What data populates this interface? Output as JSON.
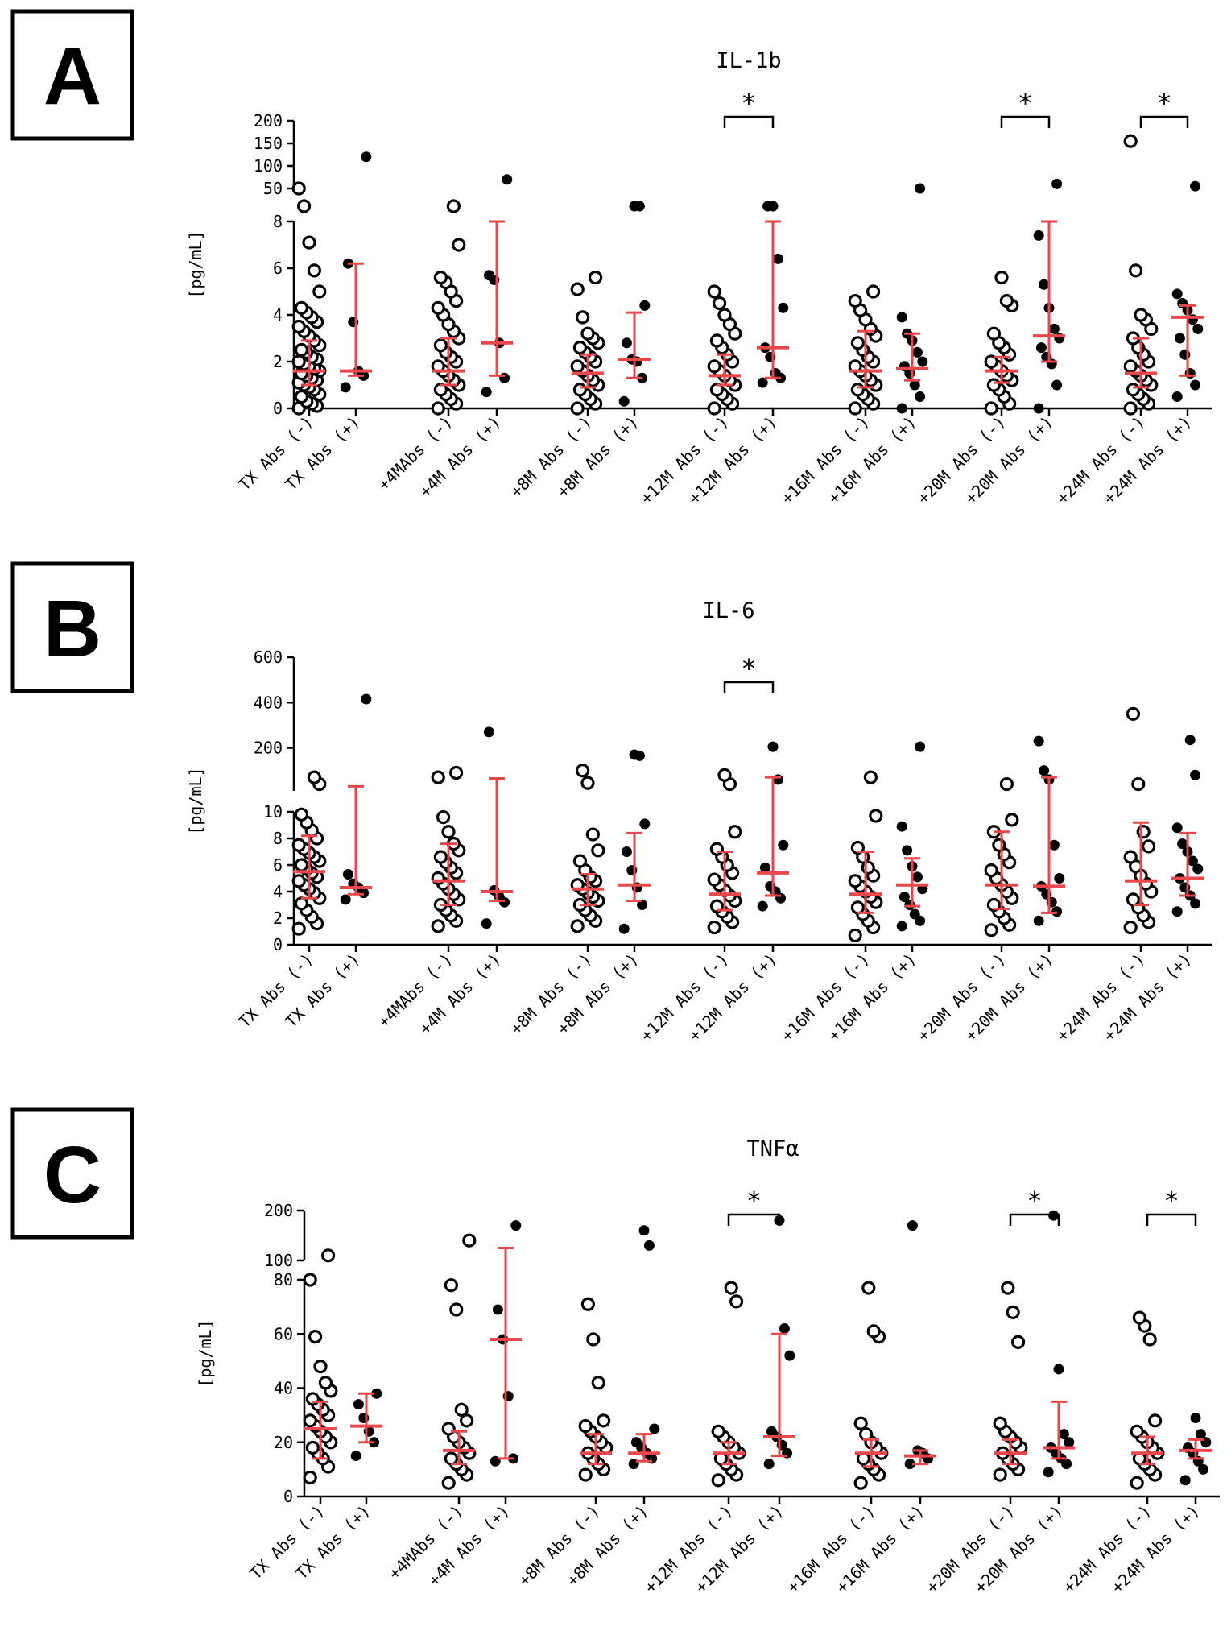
{
  "chart_data": [
    {
      "panel": "A",
      "type": "scatter",
      "title": "IL-1b",
      "ylabel": "[pg/mL]",
      "categories": [
        "TX Abs (-)",
        "TX Abs (+)",
        "+4MAbs (-)",
        "+4M Abs (+)",
        "+8M Abs (-)",
        "+8M Abs (+)",
        "+12M Abs (-)",
        "+12M Abs (+)",
        "+16M Abs (-)",
        "+16M Abs (+)",
        "+20M Abs (-)",
        "+20M Abs (+)",
        "+24M Abs (-)",
        "+24M Abs (+)"
      ],
      "y_segments": [
        {
          "range": [
            0,
            8
          ],
          "ticks": [
            "0",
            "2",
            "4",
            "6",
            "8"
          ]
        },
        {
          "range": [
            50,
            200
          ],
          "ticks": [
            "50",
            "100",
            "150",
            "200"
          ]
        }
      ],
      "series": [
        {
          "name": "Abs (-)",
          "marker": "open circle",
          "groups": [
            0,
            2,
            4,
            6,
            8,
            10,
            12
          ]
        },
        {
          "name": "Abs (+)",
          "marker": "filled circle",
          "groups": [
            1,
            3,
            5,
            7,
            9,
            11,
            13
          ]
        }
      ],
      "points": [
        [
          0.0,
          0.1,
          0.2,
          0.3,
          0.5,
          0.6,
          0.8,
          0.9,
          1.0,
          1.1,
          1.2,
          1.3,
          1.4,
          1.5,
          1.6,
          1.7,
          1.8,
          1.9,
          2.0,
          2.1,
          2.2,
          2.4,
          2.5,
          2.7,
          2.9,
          3.1,
          3.3,
          3.5,
          3.7,
          3.9,
          4.1,
          4.3,
          5.0,
          5.9,
          7.1,
          30,
          50
        ],
        [
          0.9,
          1.4,
          1.6,
          3.7,
          6.2,
          120
        ],
        [
          0.0,
          0.2,
          0.4,
          0.6,
          0.8,
          1.0,
          1.2,
          1.4,
          1.6,
          1.8,
          2.0,
          2.2,
          2.4,
          2.7,
          3.0,
          3.3,
          3.6,
          4.0,
          4.3,
          4.6,
          5.0,
          5.4,
          5.6,
          7.0,
          30
        ],
        [
          0.7,
          1.3,
          2.8,
          5.5,
          5.7,
          70
        ],
        [
          0.0,
          0.2,
          0.4,
          0.6,
          0.8,
          1.0,
          1.2,
          1.4,
          1.6,
          1.8,
          2.0,
          2.2,
          2.4,
          2.6,
          2.8,
          3.0,
          3.2,
          3.9,
          5.1,
          5.6
        ],
        [
          0.3,
          1.3,
          2.0,
          2.1,
          2.8,
          4.4,
          40,
          45
        ],
        [
          0.0,
          0.2,
          0.4,
          0.6,
          0.8,
          1.0,
          1.2,
          1.4,
          1.6,
          1.8,
          2.0,
          2.3,
          2.6,
          2.9,
          3.2,
          3.6,
          4.0,
          4.5,
          5.0
        ],
        [
          1.1,
          1.3,
          1.5,
          2.2,
          2.6,
          4.3,
          6.4,
          40,
          48
        ],
        [
          0.0,
          0.2,
          0.4,
          0.6,
          0.8,
          1.0,
          1.2,
          1.4,
          1.6,
          1.8,
          2.0,
          2.2,
          2.5,
          2.8,
          3.1,
          3.4,
          3.8,
          4.2,
          4.6,
          5.0
        ],
        [
          0.0,
          0.5,
          1.0,
          1.5,
          1.8,
          2.0,
          2.4,
          2.9,
          3.2,
          3.9,
          50
        ],
        [
          0.0,
          0.2,
          0.5,
          0.8,
          1.0,
          1.2,
          1.4,
          1.6,
          1.8,
          2.0,
          2.3,
          2.6,
          2.8,
          3.2,
          4.4,
          4.6,
          5.6
        ],
        [
          0.0,
          1.0,
          1.9,
          2.2,
          2.6,
          3.0,
          3.4,
          4.3,
          5.3,
          7.4,
          60
        ],
        [
          0.0,
          0.2,
          0.4,
          0.6,
          0.8,
          1.0,
          1.2,
          1.4,
          1.6,
          1.8,
          2.0,
          2.3,
          2.6,
          3.0,
          3.4,
          3.8,
          4.0,
          5.9,
          155
        ],
        [
          0.5,
          1.0,
          1.5,
          2.3,
          3.0,
          3.4,
          3.8,
          4.2,
          4.5,
          4.9,
          55
        ]
      ],
      "median": [
        1.6,
        1.6,
        1.6,
        2.8,
        1.5,
        2.1,
        1.4,
        2.6,
        1.6,
        1.7,
        1.6,
        3.1,
        1.5,
        3.9
      ],
      "iqr": [
        [
          1.0,
          2.9
        ],
        [
          1.4,
          6.2
        ],
        [
          1.0,
          3.0
        ],
        [
          1.4,
          8.0
        ],
        [
          0.9,
          2.3
        ],
        [
          1.3,
          4.1
        ],
        [
          1.0,
          2.3
        ],
        [
          1.3,
          8.0
        ],
        [
          0.9,
          3.3
        ],
        [
          1.2,
          3.2
        ],
        [
          1.1,
          2.2
        ],
        [
          2.0,
          8.0
        ],
        [
          0.9,
          3.0
        ],
        [
          1.4,
          4.4
        ]
      ],
      "significance": [
        {
          "between": [
            6,
            7
          ],
          "label": "*"
        },
        {
          "between": [
            10,
            11
          ],
          "label": "*"
        },
        {
          "between": [
            12,
            13
          ],
          "label": "*"
        }
      ]
    },
    {
      "panel": "B",
      "type": "scatter",
      "title": "IL-6",
      "ylabel": "[pg/mL]",
      "categories": [
        "TX Abs (-)",
        "TX Abs (+)",
        "+4MAbs (-)",
        "+4M Abs (+)",
        "+8M Abs (-)",
        "+8M Abs (+)",
        "+12M Abs (-)",
        "+12M Abs (+)",
        "+16M Abs (-)",
        "+16M Abs (+)",
        "+20M Abs (-)",
        "+20M Abs (+)",
        "+24M Abs (-)",
        "+24M Abs (+)"
      ],
      "y_segments": [
        {
          "range": [
            0,
            10
          ],
          "ticks": [
            "0",
            "2",
            "4",
            "6",
            "8",
            "10"
          ]
        },
        {
          "range": [
            10,
            600
          ],
          "ticks": [
            "200",
            "400",
            "600"
          ]
        }
      ],
      "series": [
        {
          "name": "Abs (-)",
          "marker": "open circle",
          "groups": [
            0,
            2,
            4,
            6,
            8,
            10,
            12
          ]
        },
        {
          "name": "Abs (+)",
          "marker": "filled circle",
          "groups": [
            1,
            3,
            5,
            7,
            9,
            11,
            13
          ]
        }
      ],
      "points": [
        [
          1.2,
          1.6,
          2.1,
          2.6,
          3.1,
          3.5,
          3.9,
          4.2,
          4.5,
          4.8,
          5.1,
          5.4,
          5.7,
          6.0,
          6.3,
          6.6,
          6.9,
          7.2,
          7.5,
          8.0,
          8.6,
          9.2,
          9.8,
          40,
          70
        ],
        [
          3.4,
          3.9,
          4.3,
          4.6,
          5.3,
          415
        ],
        [
          1.4,
          1.8,
          2.2,
          2.6,
          3.0,
          3.4,
          3.8,
          4.2,
          4.6,
          5.0,
          5.4,
          5.8,
          6.2,
          6.6,
          7.1,
          7.6,
          8.5,
          9.6,
          70,
          90
        ],
        [
          1.6,
          3.2,
          3.6,
          4.1,
          270
        ],
        [
          1.4,
          1.8,
          2.2,
          2.6,
          3.0,
          3.3,
          3.6,
          3.9,
          4.2,
          4.5,
          4.8,
          5.1,
          5.6,
          6.3,
          7.1,
          8.3,
          45,
          100
        ],
        [
          1.2,
          3.0,
          4.3,
          5.6,
          7.0,
          9.1,
          165,
          170
        ],
        [
          1.3,
          1.7,
          2.1,
          2.5,
          2.9,
          3.3,
          3.7,
          4.1,
          4.5,
          4.9,
          5.4,
          6.0,
          6.6,
          7.2,
          8.5,
          40,
          80
        ],
        [
          2.9,
          3.5,
          4.0,
          4.4,
          5.8,
          7.5,
          60,
          205
        ],
        [
          0.7,
          1.3,
          1.8,
          2.3,
          2.8,
          3.2,
          3.6,
          4.0,
          4.4,
          4.8,
          5.2,
          5.8,
          6.6,
          7.3,
          9.7,
          70
        ],
        [
          1.4,
          1.8,
          2.3,
          3.0,
          3.6,
          4.2,
          5.1,
          5.9,
          7.1,
          8.9,
          205
        ],
        [
          1.1,
          1.5,
          2.0,
          2.5,
          3.0,
          3.5,
          4.0,
          4.5,
          5.0,
          5.6,
          6.2,
          6.8,
          7.5,
          8.5,
          9.4,
          40
        ],
        [
          1.8,
          2.5,
          3.2,
          3.8,
          4.4,
          5.0,
          7.5,
          60,
          100,
          230
        ],
        [
          1.3,
          1.7,
          2.2,
          2.8,
          3.4,
          4.0,
          4.6,
          5.2,
          5.9,
          6.6,
          7.4,
          8.5,
          40,
          350
        ],
        [
          2.5,
          3.1,
          3.7,
          4.3,
          5.0,
          5.7,
          6.3,
          7.0,
          7.6,
          8.8,
          80,
          235
        ]
      ],
      "median": [
        5.5,
        4.3,
        4.8,
        4.0,
        4.2,
        4.5,
        3.8,
        5.4,
        3.8,
        4.5,
        4.5,
        4.4,
        4.8,
        5.0
      ],
      "iqr": [
        [
          3.5,
          8.2
        ],
        [
          3.8,
          30
        ],
        [
          3.0,
          7.6
        ],
        [
          3.3,
          65
        ],
        [
          3.0,
          5.3
        ],
        [
          3.3,
          8.4
        ],
        [
          2.6,
          7.0
        ],
        [
          3.7,
          70
        ],
        [
          2.4,
          7.0
        ],
        [
          2.9,
          6.5
        ],
        [
          2.7,
          8.5
        ],
        [
          2.4,
          70
        ],
        [
          3.0,
          9.2
        ],
        [
          3.7,
          8.4
        ]
      ],
      "significance": [
        {
          "between": [
            6,
            7
          ],
          "label": "*"
        }
      ]
    },
    {
      "panel": "C",
      "type": "scatter",
      "title": "TNFα",
      "ylabel": "[pg/mL]",
      "categories": [
        "TX Abs (-)",
        "TX Abs (+)",
        "+4MAbs (-)",
        "+4M Abs (+)",
        "+8M Abs (-)",
        "+8M Abs (+)",
        "+12M Abs (-)",
        "+12M Abs (+)",
        "+16M Abs (-)",
        "+16M Abs (+)",
        "+20M Abs (-)",
        "+20M Abs (+)",
        "+24M Abs (-)",
        "+24M Abs (+)"
      ],
      "y_segments": [
        {
          "range": [
            0,
            80
          ],
          "ticks": [
            "0",
            "20",
            "40",
            "60",
            "80"
          ]
        },
        {
          "range": [
            100,
            200
          ],
          "ticks": [
            "100",
            "200"
          ]
        }
      ],
      "series": [
        {
          "name": "Abs (-)",
          "marker": "open circle",
          "groups": [
            0,
            2,
            4,
            6,
            8,
            10,
            12
          ]
        },
        {
          "name": "Abs (+)",
          "marker": "filled circle",
          "groups": [
            1,
            3,
            5,
            7,
            9,
            11,
            13
          ]
        }
      ],
      "points": [
        [
          7,
          11,
          14,
          16,
          18,
          20,
          22,
          24,
          26,
          28,
          30,
          32,
          34,
          36,
          39,
          42,
          48,
          59,
          80,
          110
        ],
        [
          15,
          20,
          24,
          29,
          34,
          38
        ],
        [
          5,
          8,
          10,
          12,
          14,
          16,
          18,
          20,
          22,
          25,
          28,
          32,
          69,
          78,
          140
        ],
        [
          13,
          14,
          37,
          58,
          69,
          170
        ],
        [
          8,
          10,
          12,
          14,
          16,
          18,
          20,
          22,
          24,
          26,
          28,
          42,
          58,
          71
        ],
        [
          12,
          14,
          16,
          18,
          20,
          25,
          130,
          160
        ],
        [
          6,
          8,
          10,
          12,
          14,
          16,
          18,
          20,
          22,
          24,
          72,
          77
        ],
        [
          12,
          16,
          19,
          22,
          24,
          52,
          62,
          180
        ],
        [
          5,
          8,
          10,
          12,
          14,
          16,
          18,
          20,
          23,
          27,
          59,
          61,
          77
        ],
        [
          12,
          14,
          16,
          17,
          170
        ],
        [
          8,
          10,
          12,
          14,
          16,
          18,
          20,
          22,
          24,
          27,
          57,
          68,
          77
        ],
        [
          9,
          12,
          14,
          16,
          18,
          20,
          23,
          47,
          190
        ],
        [
          5,
          8,
          10,
          12,
          14,
          16,
          18,
          20,
          22,
          24,
          28,
          58,
          63,
          66
        ],
        [
          6,
          10,
          13,
          16,
          18,
          20,
          23,
          29
        ]
      ],
      "median": [
        25,
        26,
        17,
        58,
        16,
        16,
        16,
        22,
        16,
        15,
        16,
        18,
        16,
        17
      ],
      "iqr": [
        [
          14,
          35
        ],
        [
          20,
          38
        ],
        [
          12,
          24
        ],
        [
          14,
          125
        ],
        [
          12,
          23
        ],
        [
          13,
          23
        ],
        [
          12,
          20
        ],
        [
          15,
          60
        ],
        [
          11,
          21
        ],
        [
          12,
          17
        ],
        [
          12,
          21
        ],
        [
          14,
          35
        ],
        [
          12,
          22
        ],
        [
          14,
          21
        ]
      ],
      "significance": [
        {
          "between": [
            6,
            7
          ],
          "label": "*"
        },
        {
          "between": [
            10,
            11
          ],
          "label": "*"
        },
        {
          "between": [
            12,
            13
          ],
          "label": "*"
        }
      ]
    }
  ],
  "panels": [
    {
      "letter": "A"
    },
    {
      "letter": "B"
    },
    {
      "letter": "C"
    }
  ],
  "colors": {
    "median_bar": "#e8474b",
    "points": "#000000"
  }
}
